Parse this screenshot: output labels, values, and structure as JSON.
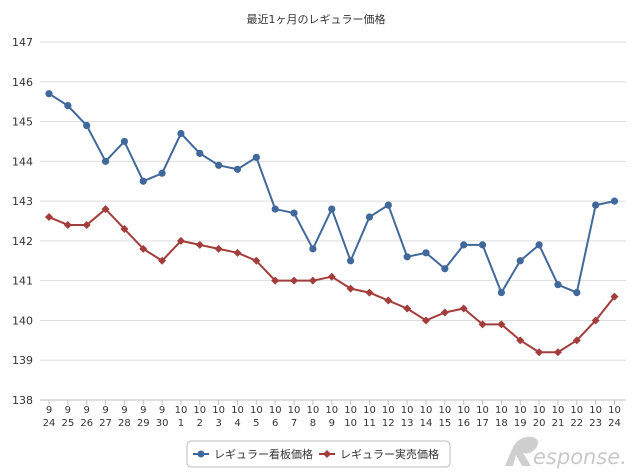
{
  "chart_data": {
    "type": "line",
    "title": "最近1ヶ月のレギュラー価格",
    "ylim": [
      138,
      147
    ],
    "yticks": [
      138,
      139,
      140,
      141,
      142,
      143,
      144,
      145,
      146,
      147
    ],
    "grid": "horizontal",
    "legend_position": "bottom",
    "categories": [
      {
        "m": "9",
        "d": "24"
      },
      {
        "m": "9",
        "d": "25"
      },
      {
        "m": "9",
        "d": "26"
      },
      {
        "m": "9",
        "d": "27"
      },
      {
        "m": "9",
        "d": "28"
      },
      {
        "m": "9",
        "d": "29"
      },
      {
        "m": "9",
        "d": "30"
      },
      {
        "m": "10",
        "d": "1"
      },
      {
        "m": "10",
        "d": "2"
      },
      {
        "m": "10",
        "d": "3"
      },
      {
        "m": "10",
        "d": "4"
      },
      {
        "m": "10",
        "d": "5"
      },
      {
        "m": "10",
        "d": "6"
      },
      {
        "m": "10",
        "d": "7"
      },
      {
        "m": "10",
        "d": "8"
      },
      {
        "m": "10",
        "d": "9"
      },
      {
        "m": "10",
        "d": "10"
      },
      {
        "m": "10",
        "d": "11"
      },
      {
        "m": "10",
        "d": "12"
      },
      {
        "m": "10",
        "d": "13"
      },
      {
        "m": "10",
        "d": "14"
      },
      {
        "m": "10",
        "d": "15"
      },
      {
        "m": "10",
        "d": "16"
      },
      {
        "m": "10",
        "d": "17"
      },
      {
        "m": "10",
        "d": "18"
      },
      {
        "m": "10",
        "d": "19"
      },
      {
        "m": "10",
        "d": "20"
      },
      {
        "m": "10",
        "d": "21"
      },
      {
        "m": "10",
        "d": "22"
      },
      {
        "m": "10",
        "d": "23"
      },
      {
        "m": "10",
        "d": "24"
      }
    ],
    "series": [
      {
        "name": "レギュラー看板価格",
        "color": "#41689a",
        "marker": "circle",
        "values": [
          145.7,
          145.4,
          144.9,
          144.0,
          144.5,
          143.5,
          143.7,
          144.7,
          144.2,
          143.9,
          143.8,
          144.1,
          142.8,
          142.7,
          141.8,
          142.8,
          141.5,
          142.6,
          142.9,
          141.6,
          141.7,
          141.3,
          141.9,
          141.9,
          140.7,
          141.5,
          141.9,
          140.9,
          140.7,
          142.9,
          143.0
        ]
      },
      {
        "name": "レギュラー実売価格",
        "color": "#a23d3b",
        "marker": "diamond",
        "values": [
          142.6,
          142.4,
          142.4,
          142.8,
          142.3,
          141.8,
          141.5,
          142.0,
          141.9,
          141.8,
          141.7,
          141.5,
          141.0,
          141.0,
          141.0,
          141.1,
          140.8,
          140.7,
          140.5,
          140.3,
          140.0,
          140.2,
          140.3,
          139.9,
          139.9,
          139.5,
          139.2,
          139.2,
          139.5,
          140.0,
          140.6
        ]
      }
    ]
  },
  "watermark": {
    "text": "esponse."
  }
}
